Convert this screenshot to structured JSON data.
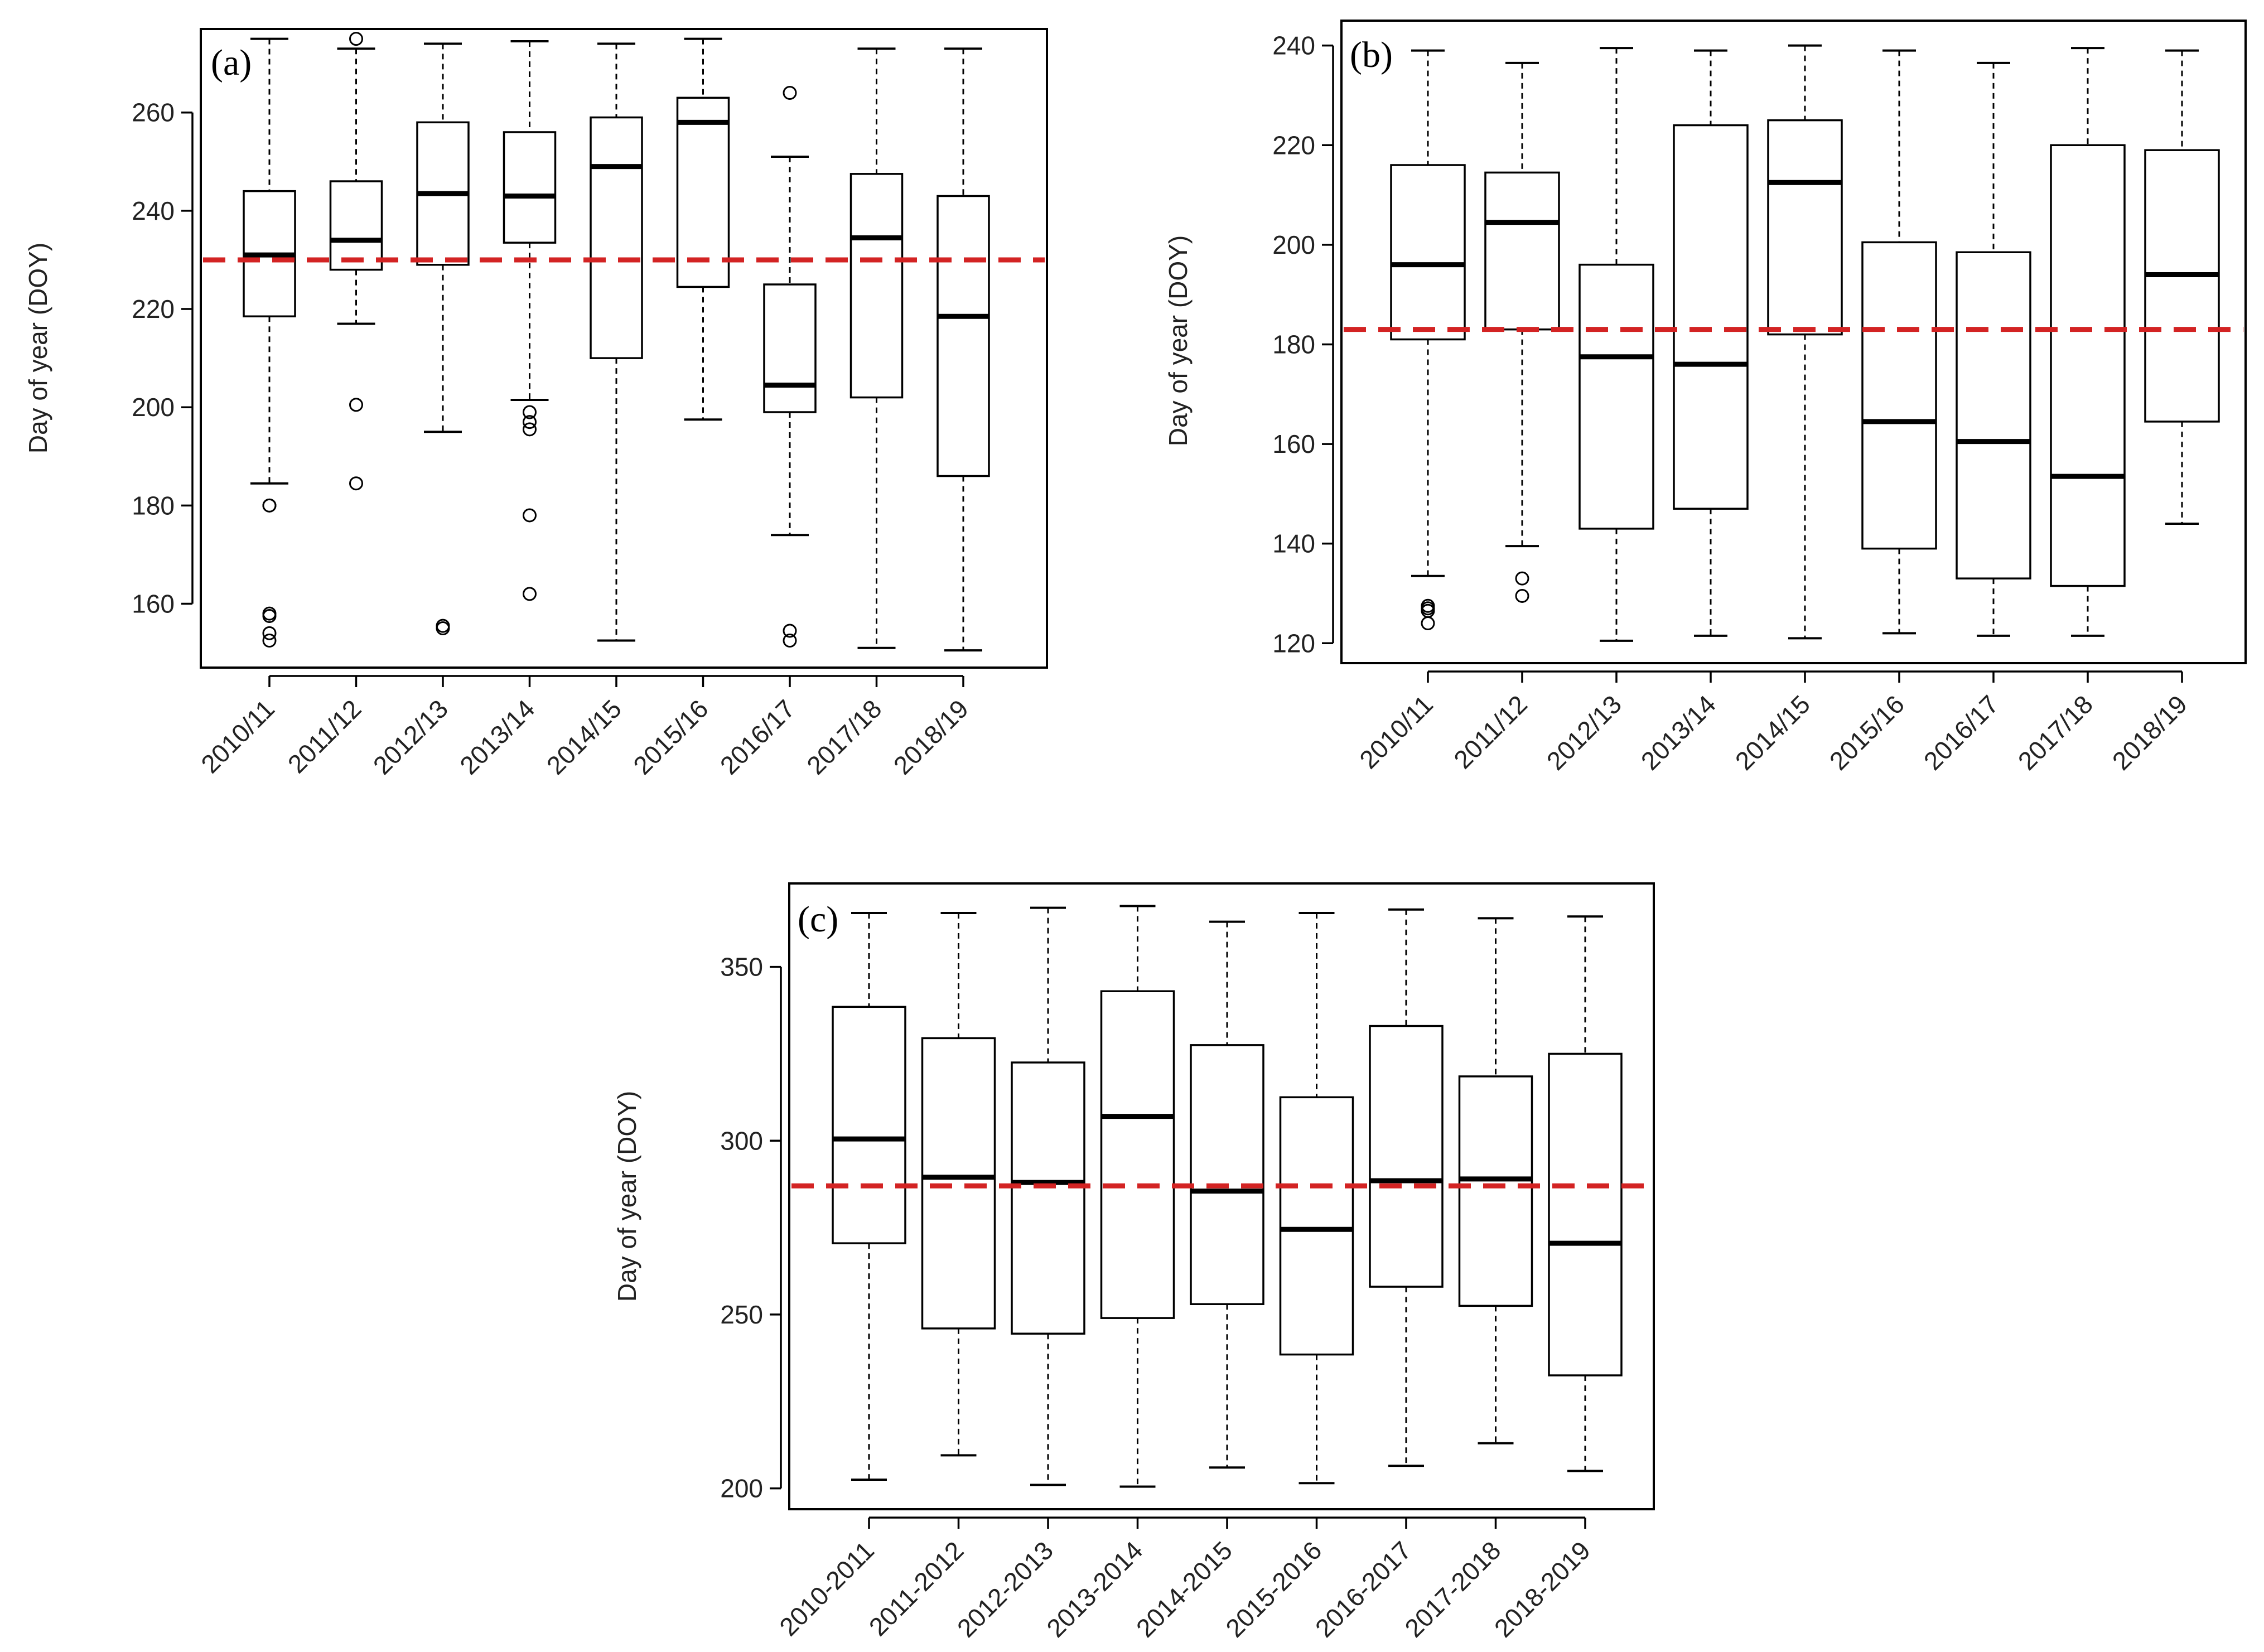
{
  "ref_line_color": "#d32323",
  "chart_data": [
    {
      "type": "boxplot",
      "panel_label": "(a)",
      "ylabel": "Day of year (DOY)",
      "ylim": [
        147,
        277
      ],
      "yticks": [
        160,
        180,
        200,
        220,
        240,
        260
      ],
      "reference_line": 230,
      "categories": [
        "2010/11",
        "2011/12",
        "2012/13",
        "2013/14",
        "2014/15",
        "2015/16",
        "2016/17",
        "2017/18",
        "2018/19"
      ],
      "boxes": [
        {
          "min": 184.5,
          "q1": 218.5,
          "median": 231,
          "q3": 244,
          "max": 275,
          "outliers": [
            180,
            180,
            158,
            157.5,
            154,
            152.5
          ]
        },
        {
          "min": 217,
          "q1": 228,
          "median": 234,
          "q3": 246,
          "max": 273,
          "outliers": [
            275,
            200.5,
            184.5
          ]
        },
        {
          "min": 195,
          "q1": 229,
          "median": 243.5,
          "q3": 258,
          "max": 274,
          "outliers": [
            155.5,
            155
          ]
        },
        {
          "min": 201.5,
          "q1": 233.5,
          "median": 243,
          "q3": 256,
          "max": 274.5,
          "outliers": [
            199,
            197,
            195.5,
            178,
            162
          ]
        },
        {
          "min": 152.5,
          "q1": 210,
          "median": 249,
          "q3": 259,
          "max": 274,
          "outliers": []
        },
        {
          "min": 197.5,
          "q1": 224.5,
          "median": 258,
          "q3": 263,
          "max": 275,
          "outliers": []
        },
        {
          "min": 174,
          "q1": 199,
          "median": 204.5,
          "q3": 225,
          "max": 251,
          "outliers": [
            264,
            154.5,
            152.5
          ]
        },
        {
          "min": 151,
          "q1": 202,
          "median": 234.5,
          "q3": 247.5,
          "max": 273,
          "outliers": []
        },
        {
          "min": 150.5,
          "q1": 186,
          "median": 218.5,
          "q3": 243,
          "max": 273,
          "outliers": []
        }
      ]
    },
    {
      "type": "boxplot",
      "panel_label": "(b)",
      "ylabel": "Day of year (DOY)",
      "ylim": [
        116,
        245
      ],
      "yticks": [
        120,
        140,
        160,
        180,
        200,
        220,
        240
      ],
      "reference_line": 183,
      "categories": [
        "2010/11",
        "2011/12",
        "2012/13",
        "2013/14",
        "2014/15",
        "2015/16",
        "2016/17",
        "2017/18",
        "2018/19"
      ],
      "boxes": [
        {
          "min": 133.5,
          "q1": 181,
          "median": 196,
          "q3": 216,
          "max": 239,
          "outliers": [
            127.5,
            127,
            126.5,
            124
          ]
        },
        {
          "min": 139.5,
          "q1": 183,
          "median": 204.5,
          "q3": 214.5,
          "max": 236.5,
          "outliers": [
            133,
            129.5
          ]
        },
        {
          "min": 120.5,
          "q1": 143,
          "median": 177.5,
          "q3": 196,
          "max": 239.5,
          "outliers": []
        },
        {
          "min": 121.5,
          "q1": 147,
          "median": 176,
          "q3": 224,
          "max": 239,
          "outliers": []
        },
        {
          "min": 121,
          "q1": 182,
          "median": 212.5,
          "q3": 225,
          "max": 240,
          "outliers": []
        },
        {
          "min": 122,
          "q1": 139,
          "median": 164.5,
          "q3": 200.5,
          "max": 239,
          "outliers": []
        },
        {
          "min": 121.5,
          "q1": 133,
          "median": 160.5,
          "q3": 198.5,
          "max": 236.5,
          "outliers": []
        },
        {
          "min": 121.5,
          "q1": 131.5,
          "median": 153.5,
          "q3": 220,
          "max": 239.5,
          "outliers": []
        },
        {
          "min": 144,
          "q1": 164.5,
          "median": 194,
          "q3": 219,
          "max": 239,
          "outliers": []
        }
      ]
    },
    {
      "type": "boxplot",
      "panel_label": "(c)",
      "ylabel": "Day of year (DOY)",
      "ylim": [
        194,
        374
      ],
      "yticks": [
        200,
        250,
        300,
        350
      ],
      "reference_line": 287,
      "categories": [
        "2010-2011",
        "2011-2012",
        "2012-2013",
        "2013-2014",
        "2014-2015",
        "2015-2016",
        "2016-2017",
        "2017-2018",
        "2018-2019"
      ],
      "boxes": [
        {
          "min": 202.5,
          "q1": 270.5,
          "median": 300.5,
          "q3": 338.5,
          "max": 365.5,
          "outliers": []
        },
        {
          "min": 209.5,
          "q1": 246,
          "median": 289.5,
          "q3": 329.5,
          "max": 365.5,
          "outliers": []
        },
        {
          "min": 201,
          "q1": 244.5,
          "median": 288,
          "q3": 322.5,
          "max": 367,
          "outliers": []
        },
        {
          "min": 200.5,
          "q1": 249,
          "median": 307,
          "q3": 343,
          "max": 367.5,
          "outliers": []
        },
        {
          "min": 206,
          "q1": 253,
          "median": 285.5,
          "q3": 327.5,
          "max": 363,
          "outliers": []
        },
        {
          "min": 201.5,
          "q1": 238.5,
          "median": 274.5,
          "q3": 312.5,
          "max": 365.5,
          "outliers": []
        },
        {
          "min": 206.5,
          "q1": 258,
          "median": 288.5,
          "q3": 333,
          "max": 366.5,
          "outliers": []
        },
        {
          "min": 213,
          "q1": 252.5,
          "median": 289,
          "q3": 318.5,
          "max": 364,
          "outliers": []
        },
        {
          "min": 205,
          "q1": 232.5,
          "median": 270.5,
          "q3": 325,
          "max": 364.5,
          "outliers": []
        }
      ]
    }
  ]
}
